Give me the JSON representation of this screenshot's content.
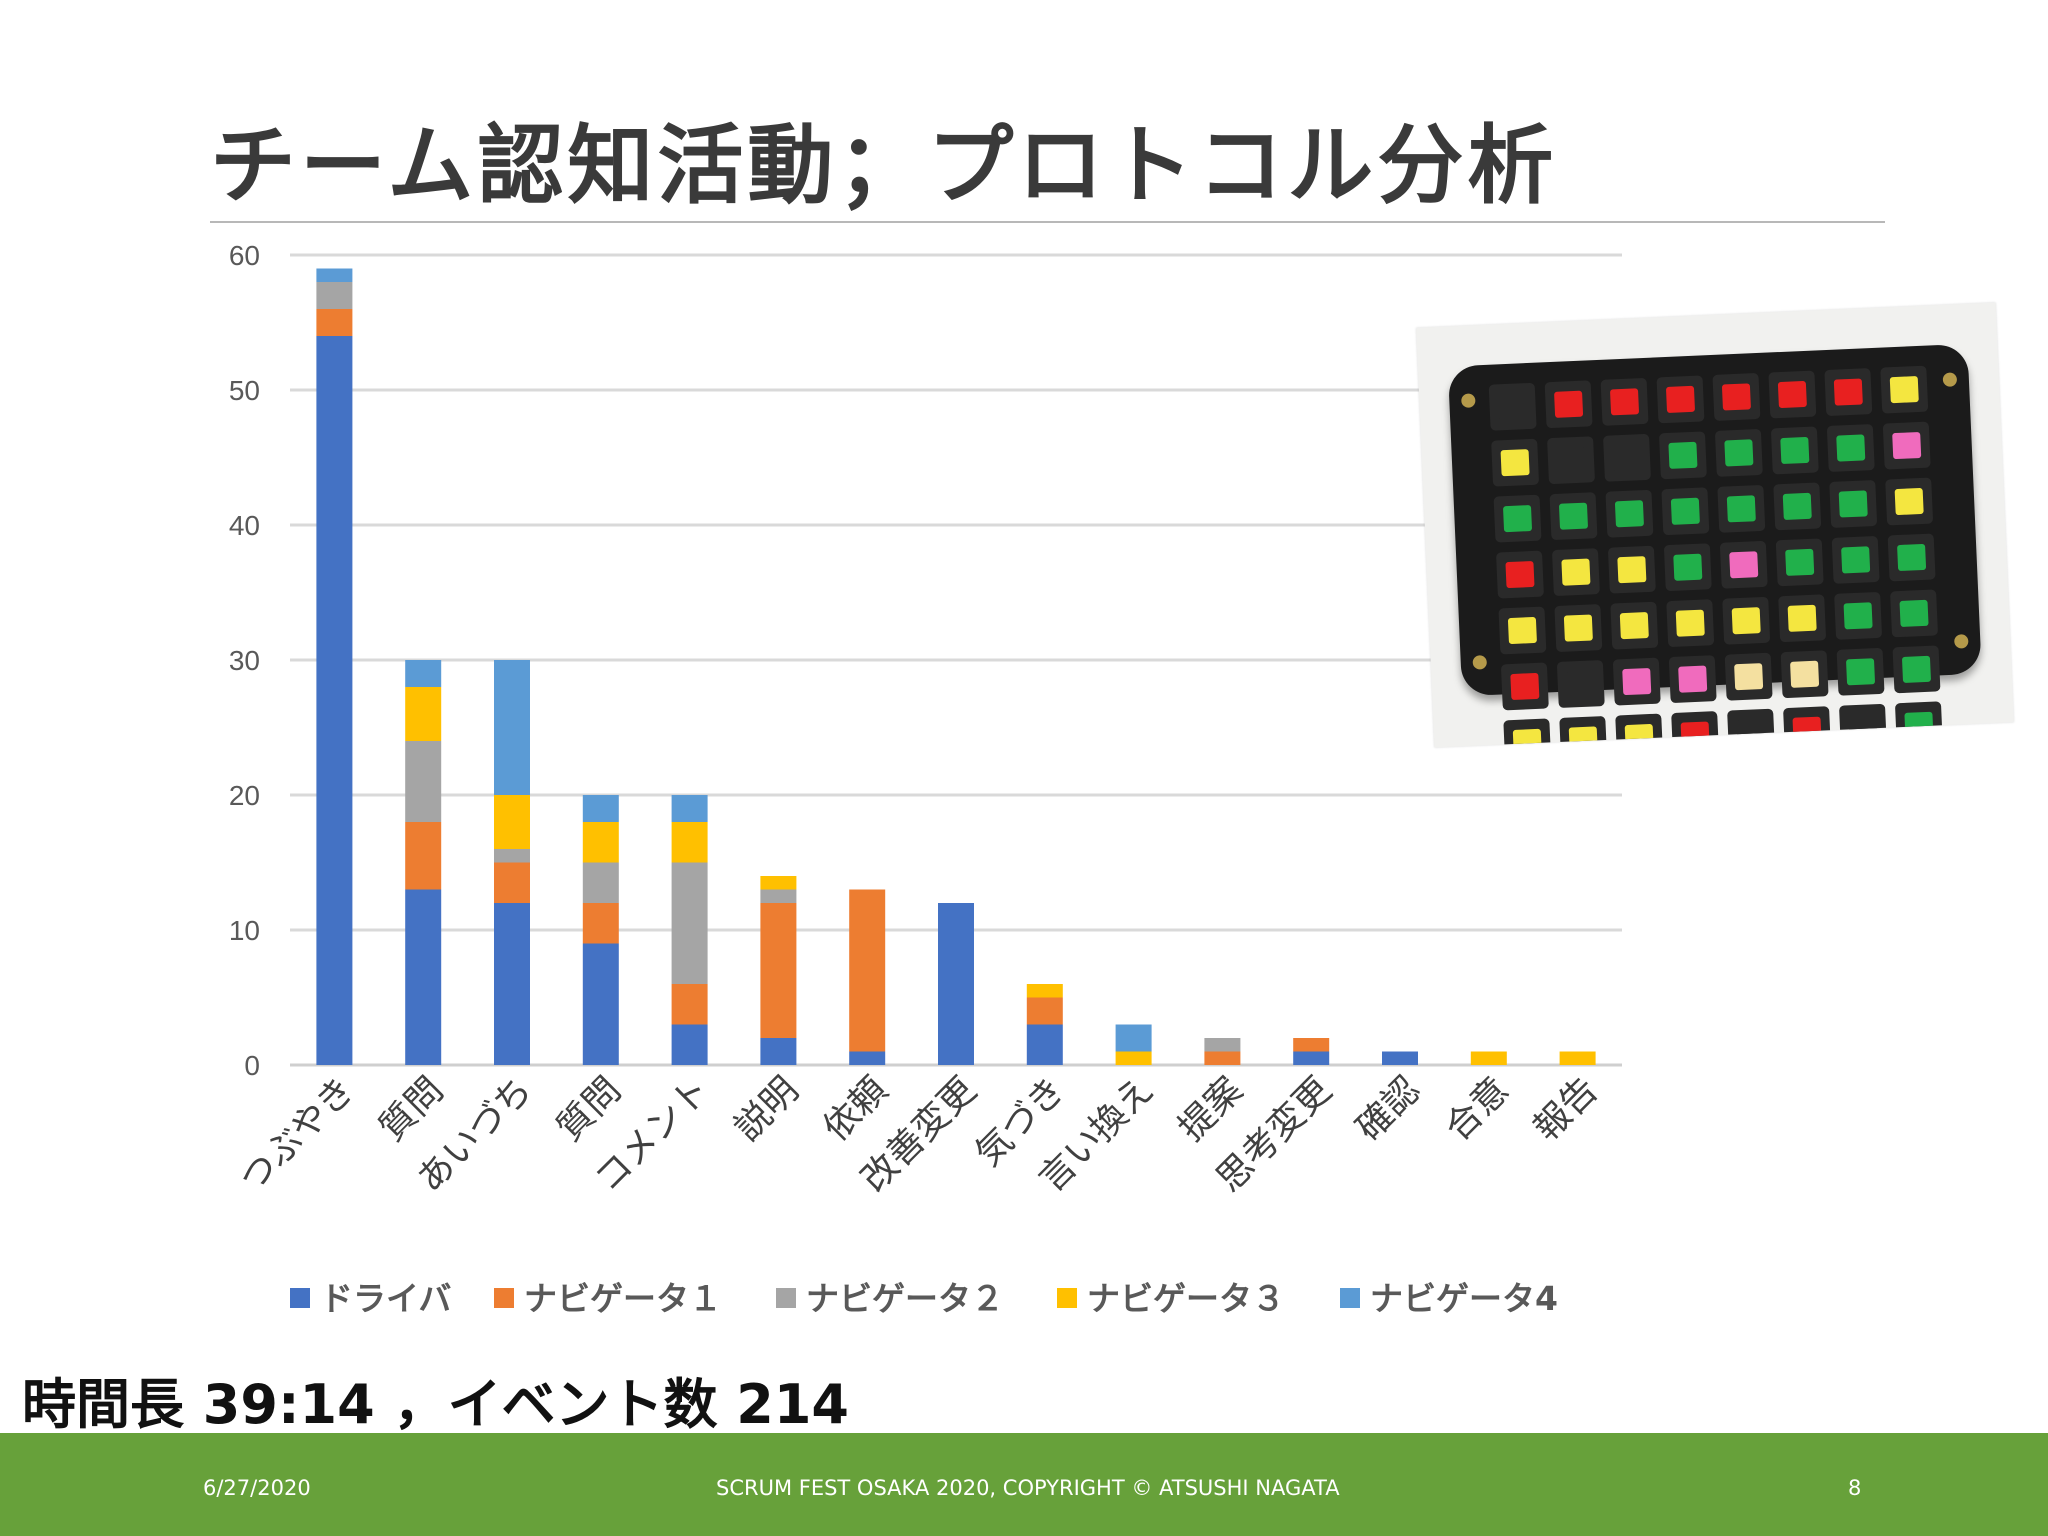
{
  "slide": {
    "title": "チーム認知活動；プロトコル分析",
    "summary": "時間長 39:14 ，イベント数 214",
    "footer_date": "6/27/2020",
    "footer_center": "SCRUM FEST OSAKA 2020, COPYRIGHT © ATSUSHI NAGATA",
    "page_number": "8"
  },
  "chart_data": {
    "type": "bar",
    "stacked": true,
    "categories": [
      "つぶやき",
      "質問",
      "あいづち",
      "質問",
      "コメント",
      "説明",
      "依頼",
      "改善変更",
      "気づき",
      "言い換え",
      "提案",
      "思考変更",
      "確認",
      "合意",
      "報告"
    ],
    "series": [
      {
        "name": "ドライバ",
        "color": "#4472c4",
        "values": [
          54,
          13,
          12,
          9,
          3,
          2,
          1,
          12,
          3,
          0,
          0,
          1,
          1,
          0,
          0
        ]
      },
      {
        "name": "ナビゲータ１",
        "color": "#ed7d31",
        "values": [
          2,
          5,
          3,
          3,
          3,
          10,
          12,
          0,
          2,
          0,
          1,
          1,
          0,
          0,
          0
        ]
      },
      {
        "name": "ナビゲータ２",
        "color": "#a5a5a5",
        "values": [
          2,
          6,
          1,
          3,
          9,
          1,
          0,
          0,
          0,
          0,
          1,
          0,
          0,
          0,
          0
        ]
      },
      {
        "name": "ナビゲータ３",
        "color": "#ffc000",
        "values": [
          0,
          4,
          4,
          3,
          3,
          1,
          0,
          0,
          1,
          1,
          0,
          0,
          0,
          1,
          1
        ]
      },
      {
        "name": "ナビゲータ4",
        "color": "#5b9bd5",
        "values": [
          1,
          2,
          10,
          2,
          2,
          0,
          0,
          0,
          0,
          2,
          0,
          0,
          0,
          0,
          0
        ]
      }
    ],
    "ylim": [
      0,
      60
    ],
    "yticks": [
      "0",
      "10",
      "20",
      "30",
      "40",
      "50",
      "60"
    ],
    "grid": true,
    "legend": "bottom"
  },
  "photo": {
    "key_colors": [
      "#2a2a2a",
      "#e82020",
      "#e82020",
      "#e82020",
      "#e82020",
      "#e82020",
      "#e82020",
      "#f4e640",
      "#f4e640",
      "#2a2a2a",
      "#2a2a2a",
      "#21b04b",
      "#21b04b",
      "#21b04b",
      "#21b04b",
      "#f06bbd",
      "#21b04b",
      "#21b04b",
      "#21b04b",
      "#21b04b",
      "#21b04b",
      "#21b04b",
      "#21b04b",
      "#f4e640",
      "#e82020",
      "#f4e640",
      "#f4e640",
      "#21b04b",
      "#f06bbd",
      "#21b04b",
      "#21b04b",
      "#21b04b",
      "#f4e640",
      "#f4e640",
      "#f4e640",
      "#f4e640",
      "#f4e640",
      "#f4e640",
      "#21b04b",
      "#21b04b",
      "#e82020",
      "#2a2a2a",
      "#f06bbd",
      "#f06bbd",
      "#f4e0a0",
      "#f4e0a0",
      "#21b04b",
      "#21b04b",
      "#f4e640",
      "#f4e640",
      "#f4e640",
      "#e82020",
      "#2a2a2a",
      "#e82020",
      "#2a2a2a",
      "#21b04b"
    ]
  }
}
